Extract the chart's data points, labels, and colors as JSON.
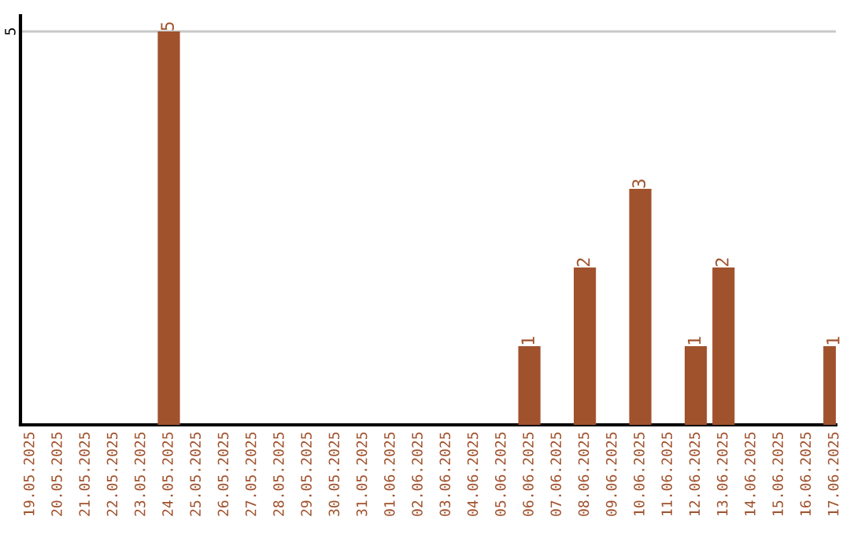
{
  "chart_data": {
    "type": "bar",
    "categories": [
      "19.05.2025",
      "20.05.2025",
      "21.05.2025",
      "22.05.2025",
      "23.05.2025",
      "24.05.2025",
      "25.05.2025",
      "26.05.2025",
      "27.05.2025",
      "28.05.2025",
      "29.05.2025",
      "30.05.2025",
      "31.05.2025",
      "01.06.2025",
      "02.06.2025",
      "03.06.2025",
      "04.06.2025",
      "05.06.2025",
      "06.06.2025",
      "07.06.2025",
      "08.06.2025",
      "09.06.2025",
      "10.06.2025",
      "11.06.2025",
      "12.06.2025",
      "13.06.2025",
      "14.06.2025",
      "15.06.2025",
      "16.06.2025",
      "17.06.2025"
    ],
    "values": [
      0,
      0,
      0,
      0,
      0,
      5,
      0,
      0,
      0,
      0,
      0,
      0,
      0,
      0,
      0,
      0,
      0,
      0,
      1,
      0,
      2,
      0,
      3,
      0,
      1,
      2,
      0,
      0,
      0,
      1
    ],
    "value_labels": [
      null,
      null,
      null,
      null,
      null,
      "5",
      null,
      null,
      null,
      null,
      null,
      null,
      null,
      null,
      null,
      null,
      null,
      null,
      "1",
      null,
      "2",
      null,
      "3",
      null,
      "1",
      "2",
      null,
      null,
      null,
      "1"
    ],
    "color": "#a0522d",
    "ylim": [
      0,
      5.2
    ],
    "yticks": [
      5
    ],
    "grid": "y",
    "legend": false
  }
}
